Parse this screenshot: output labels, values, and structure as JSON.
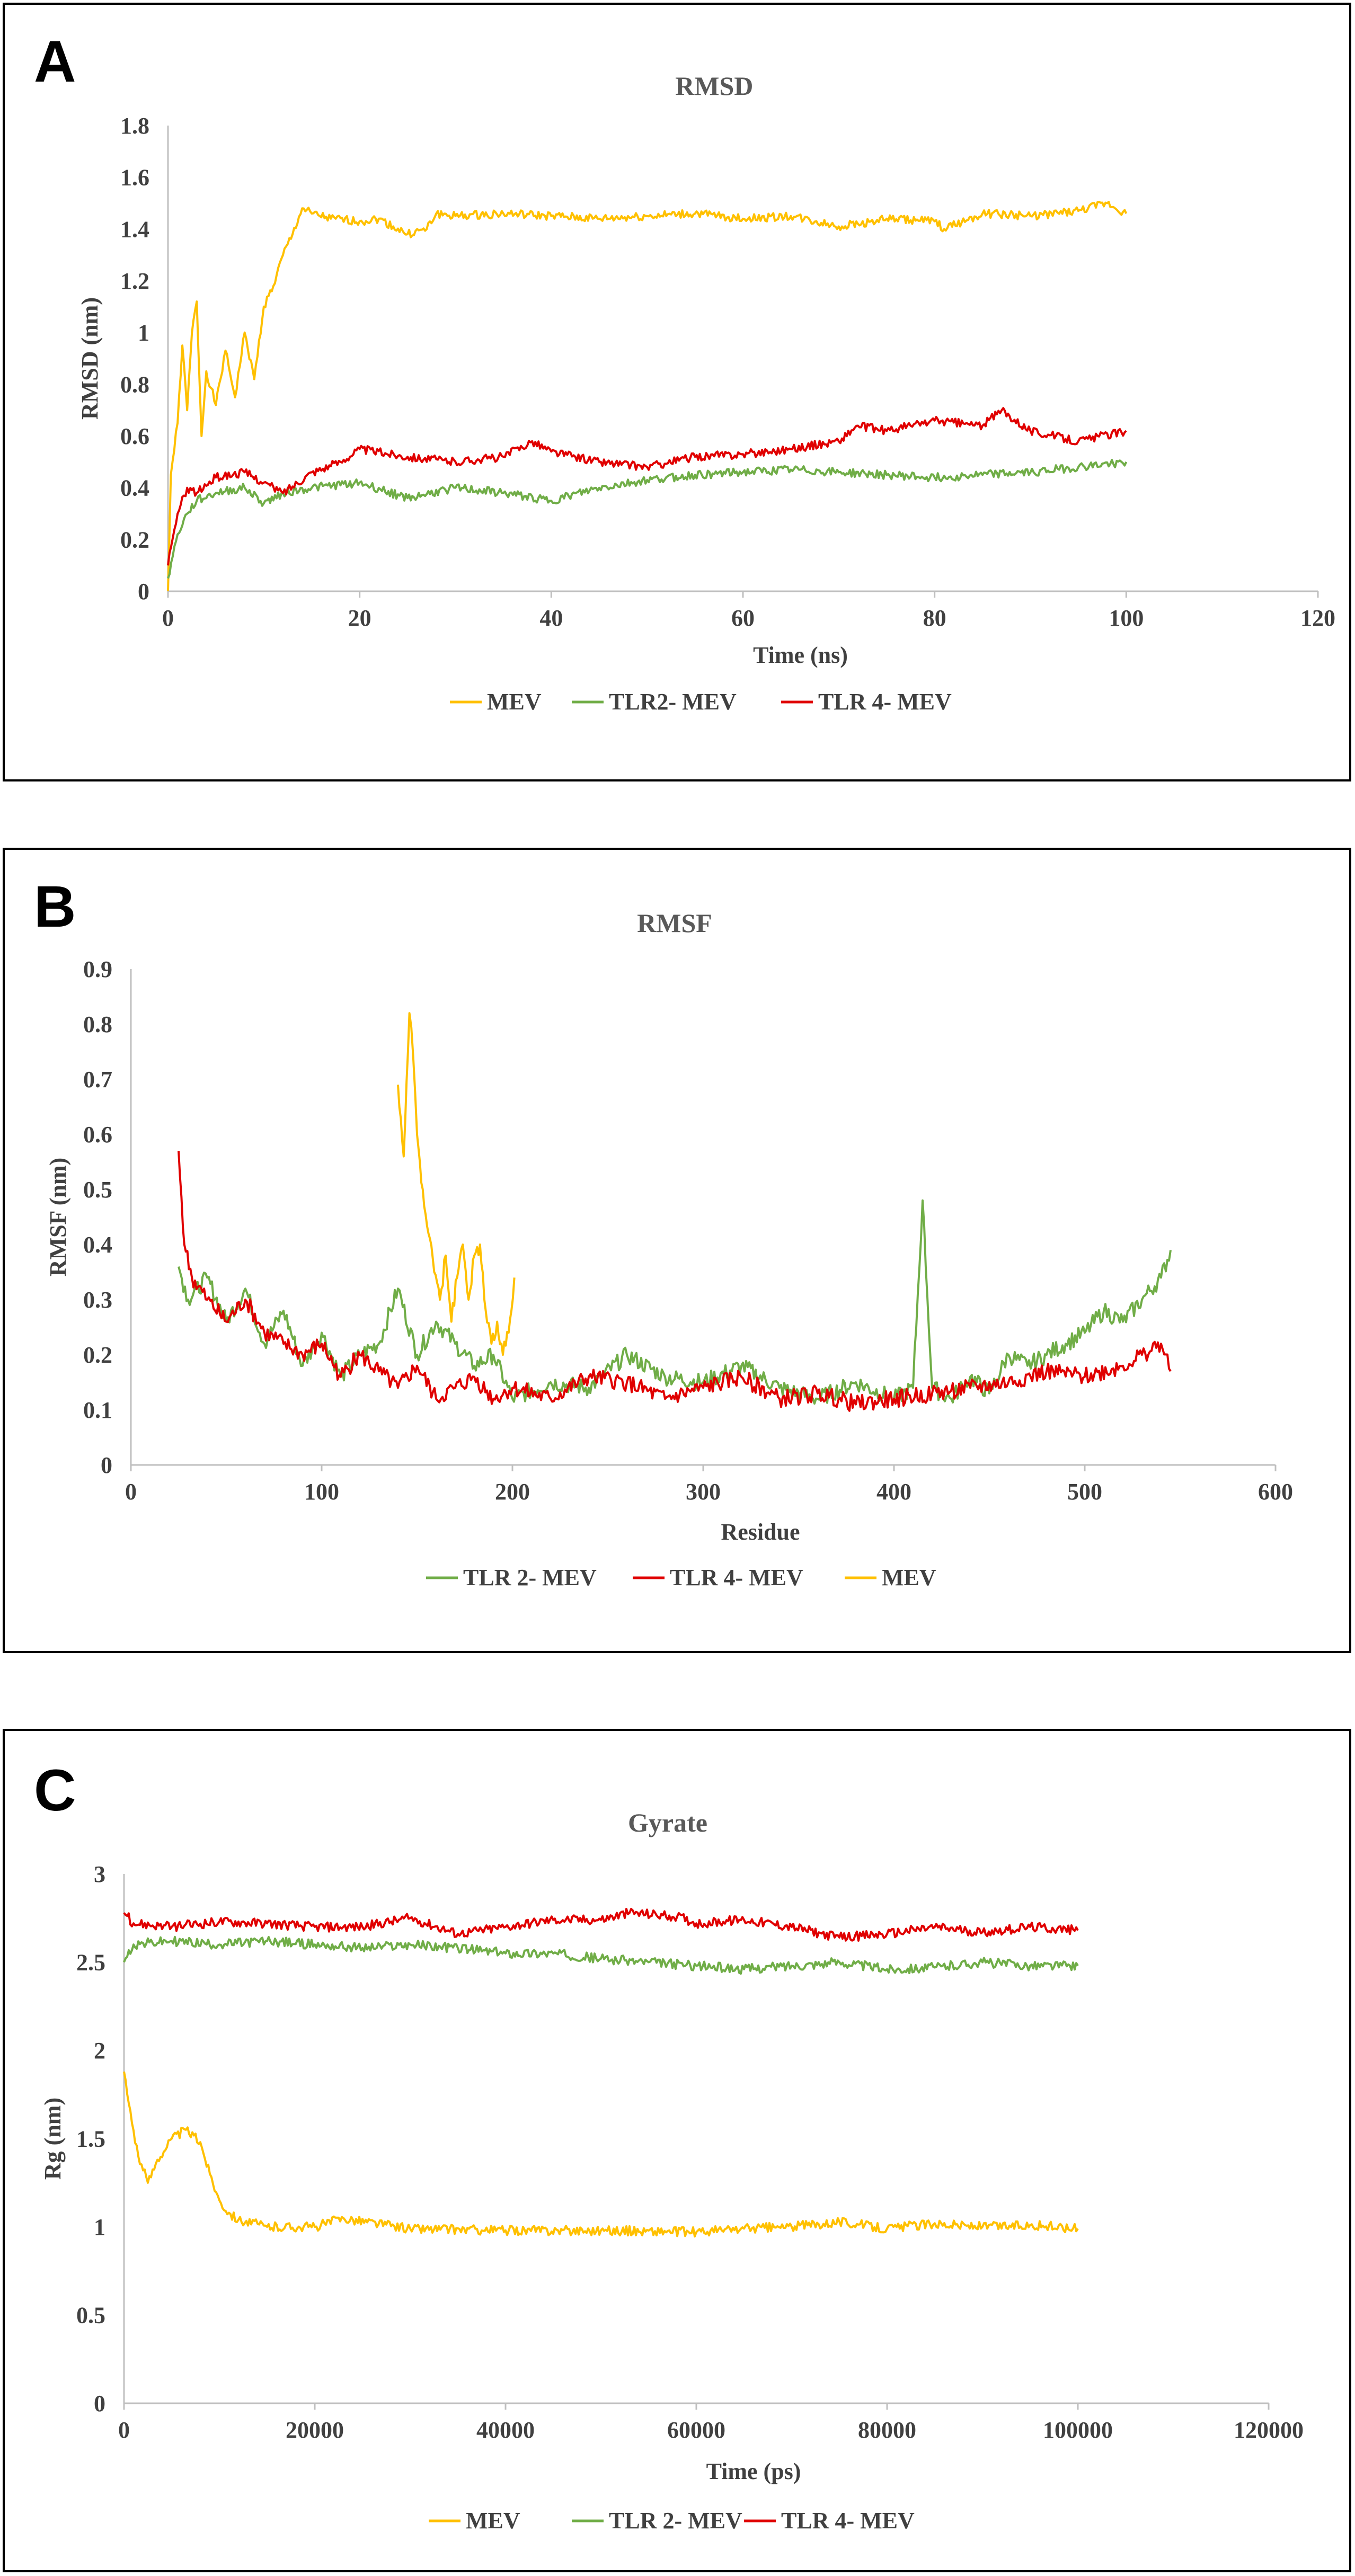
{
  "chart_data": [
    {
      "id": "A",
      "type": "line",
      "panel_label": "A",
      "title": "RMSD",
      "xlabel": "Time (ns)",
      "ylabel": "RMSD (nm)",
      "xlim": [
        0,
        120
      ],
      "ylim": [
        0,
        1.8
      ],
      "xticks": [
        0,
        20,
        40,
        60,
        80,
        100,
        120
      ],
      "yticks": [
        0,
        0.2,
        0.4,
        0.6,
        0.8,
        1,
        1.2,
        1.4,
        1.6,
        1.8
      ],
      "legend_position": "bottom",
      "series": [
        {
          "name": "MEV",
          "color": "#FFC000",
          "x": [
            0,
            0.3,
            1,
            1.5,
            2,
            2.5,
            3,
            3.5,
            4,
            5,
            6,
            7,
            8,
            9,
            10,
            11,
            12,
            13,
            14,
            15,
            17,
            20,
            22,
            25,
            27,
            28,
            30,
            35,
            40,
            45,
            50,
            55,
            60,
            65,
            70,
            72,
            75,
            80,
            81,
            85,
            90,
            95,
            98,
            100
          ],
          "y": [
            0,
            0.45,
            0.65,
            0.95,
            0.7,
            1.0,
            1.12,
            0.6,
            0.85,
            0.72,
            0.93,
            0.75,
            1.0,
            0.82,
            1.1,
            1.18,
            1.3,
            1.38,
            1.48,
            1.46,
            1.44,
            1.43,
            1.44,
            1.38,
            1.4,
            1.46,
            1.45,
            1.46,
            1.45,
            1.44,
            1.45,
            1.46,
            1.44,
            1.45,
            1.41,
            1.42,
            1.44,
            1.43,
            1.4,
            1.46,
            1.45,
            1.47,
            1.5,
            1.46
          ]
        },
        {
          "name": "TLR2- MEV",
          "color": "#70AD47",
          "x": [
            0,
            1,
            2,
            3,
            5,
            8,
            10,
            12,
            15,
            20,
            25,
            30,
            35,
            40,
            45,
            50,
            55,
            60,
            65,
            70,
            75,
            80,
            85,
            90,
            95,
            100
          ],
          "y": [
            0.05,
            0.22,
            0.3,
            0.35,
            0.38,
            0.4,
            0.34,
            0.38,
            0.4,
            0.42,
            0.36,
            0.4,
            0.38,
            0.35,
            0.4,
            0.43,
            0.45,
            0.46,
            0.47,
            0.46,
            0.45,
            0.44,
            0.45,
            0.46,
            0.48,
            0.5
          ]
        },
        {
          "name": "TLR 4- MEV",
          "color": "#E00000",
          "x": [
            0,
            1,
            2,
            3,
            5,
            8,
            10,
            12,
            15,
            18,
            20,
            25,
            30,
            35,
            38,
            40,
            45,
            50,
            55,
            60,
            65,
            70,
            72,
            75,
            80,
            85,
            87,
            90,
            95,
            100
          ],
          "y": [
            0.1,
            0.3,
            0.4,
            0.38,
            0.44,
            0.46,
            0.42,
            0.38,
            0.46,
            0.5,
            0.55,
            0.52,
            0.5,
            0.52,
            0.58,
            0.54,
            0.5,
            0.48,
            0.52,
            0.53,
            0.55,
            0.58,
            0.64,
            0.62,
            0.66,
            0.64,
            0.7,
            0.62,
            0.58,
            0.62
          ]
        }
      ]
    },
    {
      "id": "B",
      "type": "line",
      "panel_label": "B",
      "title": "RMSF",
      "xlabel": "Residue",
      "ylabel": "RMSF (nm)",
      "xlim": [
        0,
        600
      ],
      "ylim": [
        0,
        0.9
      ],
      "xticks": [
        0,
        100,
        200,
        300,
        400,
        500,
        600
      ],
      "yticks": [
        0,
        0.1,
        0.2,
        0.3,
        0.4,
        0.5,
        0.6,
        0.7,
        0.8,
        0.9
      ],
      "legend_position": "bottom",
      "series": [
        {
          "name": "TLR 2- MEV",
          "color": "#70AD47",
          "x": [
            25,
            30,
            40,
            50,
            60,
            70,
            80,
            90,
            100,
            110,
            120,
            130,
            140,
            150,
            160,
            170,
            180,
            190,
            200,
            220,
            240,
            260,
            280,
            300,
            320,
            340,
            360,
            380,
            400,
            410,
            415,
            420,
            430,
            440,
            450,
            460,
            470,
            480,
            490,
            500,
            510,
            520,
            530,
            540,
            545
          ],
          "y": [
            0.36,
            0.3,
            0.34,
            0.26,
            0.32,
            0.22,
            0.28,
            0.18,
            0.24,
            0.16,
            0.2,
            0.22,
            0.32,
            0.2,
            0.26,
            0.22,
            0.18,
            0.2,
            0.12,
            0.15,
            0.14,
            0.2,
            0.16,
            0.15,
            0.18,
            0.14,
            0.12,
            0.15,
            0.12,
            0.14,
            0.48,
            0.14,
            0.12,
            0.16,
            0.13,
            0.2,
            0.18,
            0.2,
            0.22,
            0.24,
            0.28,
            0.26,
            0.3,
            0.34,
            0.39
          ]
        },
        {
          "name": "TLR 4- MEV",
          "color": "#E00000",
          "x": [
            25,
            28,
            32,
            40,
            50,
            60,
            70,
            80,
            90,
            100,
            110,
            120,
            130,
            140,
            150,
            160,
            170,
            180,
            190,
            200,
            220,
            240,
            260,
            280,
            300,
            320,
            340,
            360,
            380,
            400,
            420,
            440,
            460,
            480,
            500,
            520,
            530,
            540,
            545
          ],
          "y": [
            0.57,
            0.4,
            0.34,
            0.3,
            0.26,
            0.3,
            0.24,
            0.22,
            0.2,
            0.22,
            0.16,
            0.2,
            0.17,
            0.14,
            0.18,
            0.12,
            0.14,
            0.16,
            0.12,
            0.14,
            0.12,
            0.16,
            0.15,
            0.12,
            0.14,
            0.16,
            0.12,
            0.13,
            0.11,
            0.12,
            0.13,
            0.14,
            0.15,
            0.17,
            0.16,
            0.18,
            0.2,
            0.22,
            0.17
          ]
        },
        {
          "name": "MEV",
          "color": "#FFC000",
          "x": [
            140,
            143,
            146,
            148,
            150,
            153,
            156,
            159,
            162,
            165,
            168,
            171,
            174,
            177,
            180,
            183,
            186,
            189,
            192,
            195,
            198,
            201
          ],
          "y": [
            0.69,
            0.56,
            0.82,
            0.74,
            0.6,
            0.5,
            0.42,
            0.35,
            0.3,
            0.38,
            0.26,
            0.34,
            0.4,
            0.3,
            0.38,
            0.4,
            0.28,
            0.22,
            0.26,
            0.2,
            0.24,
            0.34
          ]
        }
      ]
    },
    {
      "id": "C",
      "type": "line",
      "panel_label": "C",
      "title": "Gyrate",
      "xlabel": "Time (ps)",
      "ylabel": "Rg (nm)",
      "xlim": [
        0,
        120000
      ],
      "ylim": [
        0,
        3
      ],
      "xticks": [
        0,
        20000,
        40000,
        60000,
        80000,
        100000,
        120000
      ],
      "yticks": [
        0,
        0.5,
        1,
        1.5,
        2,
        2.5,
        3
      ],
      "legend_position": "bottom",
      "series": [
        {
          "name": "MEV",
          "color": "#FFC000",
          "x": [
            0,
            500,
            1500,
            2500,
            3500,
            5000,
            6500,
            8000,
            9000,
            10000,
            11000,
            12000,
            15000,
            20000,
            23000,
            30000,
            40000,
            50000,
            60000,
            65000,
            70000,
            75000,
            80000,
            85000,
            90000,
            95000,
            100000
          ],
          "y": [
            1.88,
            1.7,
            1.4,
            1.25,
            1.38,
            1.5,
            1.55,
            1.48,
            1.3,
            1.15,
            1.08,
            1.04,
            1.0,
            1.0,
            1.05,
            0.99,
            0.98,
            0.98,
            0.97,
            0.99,
            1.0,
            1.03,
            0.99,
            1.02,
            1.0,
            1.01,
            0.99
          ]
        },
        {
          "name": "TLR 2- MEV",
          "color": "#70AD47",
          "x": [
            0,
            1000,
            5000,
            10000,
            15000,
            20000,
            25000,
            30000,
            35000,
            40000,
            45000,
            50000,
            55000,
            60000,
            65000,
            70000,
            75000,
            80000,
            85000,
            90000,
            95000,
            100000
          ],
          "y": [
            2.5,
            2.6,
            2.62,
            2.6,
            2.62,
            2.6,
            2.58,
            2.6,
            2.58,
            2.55,
            2.55,
            2.52,
            2.5,
            2.48,
            2.46,
            2.48,
            2.5,
            2.46,
            2.47,
            2.5,
            2.48,
            2.48
          ]
        },
        {
          "name": "TLR 4- MEV",
          "color": "#E00000",
          "x": [
            0,
            1000,
            5000,
            10000,
            15000,
            20000,
            25000,
            30000,
            35000,
            40000,
            45000,
            50000,
            53000,
            58000,
            60000,
            65000,
            70000,
            75000,
            80000,
            85000,
            90000,
            95000,
            100000
          ],
          "y": [
            2.78,
            2.72,
            2.7,
            2.73,
            2.72,
            2.7,
            2.7,
            2.75,
            2.66,
            2.7,
            2.74,
            2.74,
            2.78,
            2.76,
            2.72,
            2.74,
            2.7,
            2.64,
            2.66,
            2.7,
            2.67,
            2.7,
            2.68
          ]
        }
      ]
    }
  ]
}
